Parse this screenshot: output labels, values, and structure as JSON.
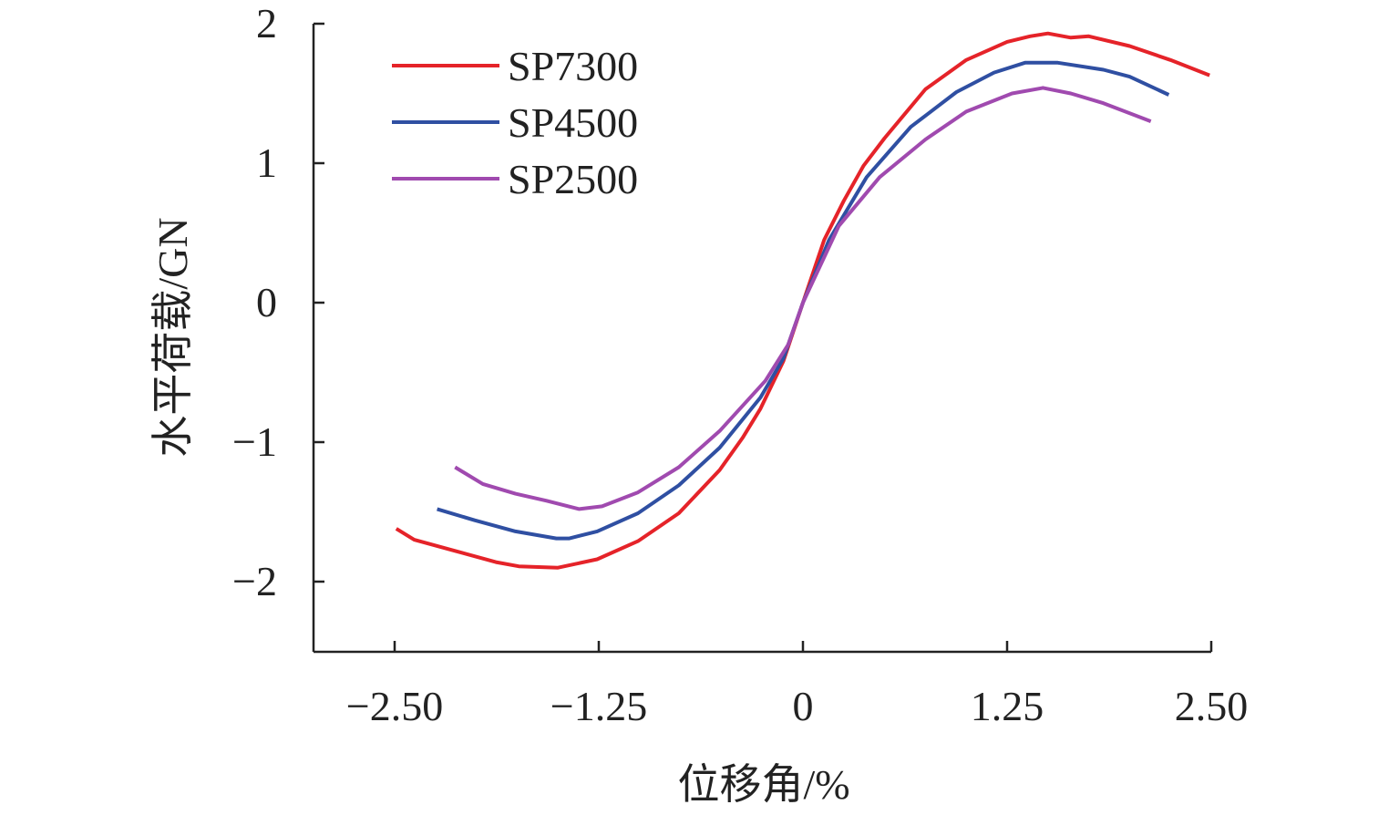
{
  "chart_data": {
    "type": "line",
    "title": "",
    "xlabel": "位移角/%",
    "ylabel": "水平荷载/GN",
    "xlim": [
      -3.0,
      2.5
    ],
    "ylim": [
      -2.5,
      2.0
    ],
    "xticks": [
      -2.5,
      -1.25,
      0,
      1.25,
      2.5
    ],
    "xtick_labels": [
      "−2.50",
      "−1.25",
      "0",
      "1.25",
      "2.50"
    ],
    "yticks": [
      2,
      1,
      0,
      -1,
      -2
    ],
    "ytick_labels": [
      "2",
      "1",
      "0",
      "−1",
      "−2"
    ],
    "grid": false,
    "legend_position": "top-left",
    "series": [
      {
        "name": "SP7300",
        "color": "#e52329",
        "x": [
          -2.49,
          -2.38,
          -2.13,
          -1.88,
          -1.74,
          -1.5,
          -1.26,
          -1.01,
          -0.76,
          -0.51,
          -0.37,
          -0.26,
          -0.12,
          0,
          0.13,
          0.25,
          0.37,
          0.5,
          0.75,
          1.0,
          1.25,
          1.39,
          1.5,
          1.64,
          1.75,
          2.0,
          2.25,
          2.49
        ],
        "y": [
          -1.62,
          -1.7,
          -1.78,
          -1.86,
          -1.89,
          -1.9,
          -1.84,
          -1.71,
          -1.51,
          -1.2,
          -0.97,
          -0.76,
          -0.42,
          0,
          0.45,
          0.73,
          0.98,
          1.18,
          1.53,
          1.74,
          1.87,
          1.91,
          1.93,
          1.9,
          1.91,
          1.84,
          1.74,
          1.63
        ]
      },
      {
        "name": "SP4500",
        "color": "#2f4fa2",
        "x": [
          -2.24,
          -2.01,
          -1.76,
          -1.51,
          -1.43,
          -1.26,
          -1.01,
          -0.76,
          -0.51,
          -0.26,
          -0.12,
          0,
          0.16,
          0.39,
          0.66,
          0.94,
          1.17,
          1.36,
          1.56,
          1.84,
          2.0,
          2.24
        ],
        "y": [
          -1.48,
          -1.56,
          -1.64,
          -1.69,
          -1.69,
          -1.64,
          -1.51,
          -1.31,
          -1.04,
          -0.68,
          -0.4,
          0,
          0.45,
          0.9,
          1.26,
          1.51,
          1.65,
          1.72,
          1.72,
          1.67,
          1.62,
          1.49
        ]
      },
      {
        "name": "SP2500",
        "color": "#a04aaf",
        "x": [
          -2.13,
          -1.96,
          -1.76,
          -1.57,
          -1.37,
          -1.23,
          -1.01,
          -0.76,
          -0.51,
          -0.23,
          -0.09,
          0,
          0.22,
          0.47,
          0.75,
          1.0,
          1.28,
          1.47,
          1.64,
          1.84,
          2.13
        ],
        "y": [
          -1.18,
          -1.3,
          -1.37,
          -1.42,
          -1.48,
          -1.46,
          -1.36,
          -1.18,
          -0.92,
          -0.56,
          -0.3,
          0,
          0.55,
          0.9,
          1.17,
          1.37,
          1.5,
          1.54,
          1.5,
          1.43,
          1.3
        ]
      }
    ]
  }
}
